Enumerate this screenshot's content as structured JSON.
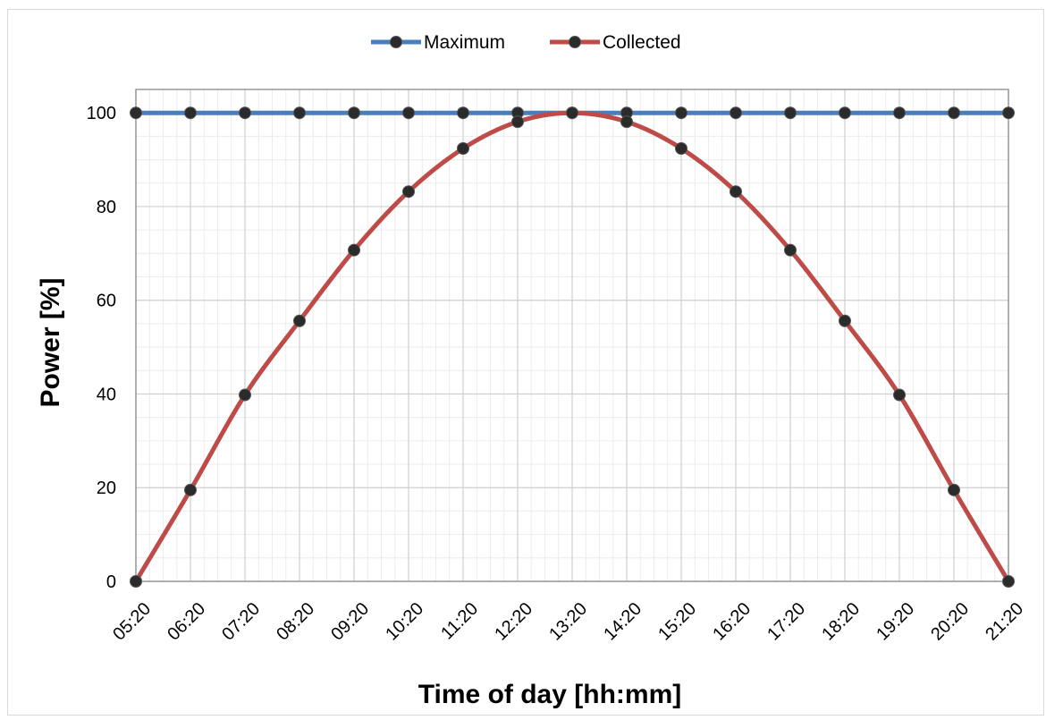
{
  "chart_data": {
    "type": "line",
    "title": "",
    "xlabel": "Time of day [hh:mm]",
    "ylabel": "Power [%]",
    "categories": [
      "05:20",
      "06:20",
      "07:20",
      "08:20",
      "09:20",
      "10:20",
      "11:20",
      "12:20",
      "13:20",
      "14:20",
      "15:20",
      "16:20",
      "17:20",
      "18:20",
      "19:20",
      "20:20",
      "21:20"
    ],
    "ylim": [
      0,
      105
    ],
    "yticks": [
      0,
      20,
      40,
      60,
      80,
      100
    ],
    "grid": true,
    "legend_position": "top-center",
    "series": [
      {
        "name": "Maximum",
        "color": "#4a7ebb",
        "values": [
          100,
          100,
          100,
          100,
          100,
          100,
          100,
          100,
          100,
          100,
          100,
          100,
          100,
          100,
          100,
          100,
          100
        ]
      },
      {
        "name": "Collected",
        "color": "#be4b48",
        "values": [
          0,
          19.5,
          39.8,
          55.6,
          70.7,
          83.2,
          92.4,
          98.1,
          100,
          98.1,
          92.4,
          83.2,
          70.7,
          55.6,
          39.8,
          19.5,
          0
        ]
      }
    ],
    "marker_color": "#2b2b2b"
  }
}
